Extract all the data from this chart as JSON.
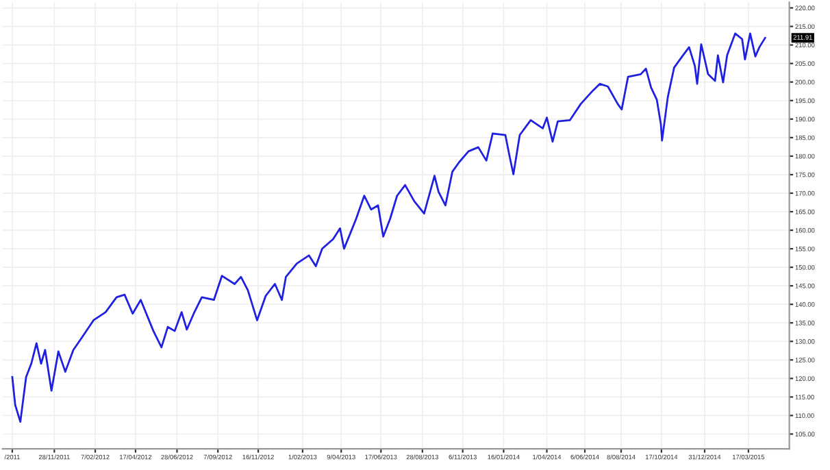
{
  "chart_data": {
    "type": "line",
    "x": [
      "2011-09-16",
      "2011-09-21",
      "2011-09-30",
      "2011-10-10",
      "2011-10-19",
      "2011-10-28",
      "2011-11-05",
      "2011-11-12",
      "2011-11-23",
      "2011-12-05",
      "2011-12-17",
      "2011-12-31",
      "2012-01-16",
      "2012-02-04",
      "2012-02-25",
      "2012-03-15",
      "2012-03-29",
      "2012-04-12",
      "2012-04-26",
      "2012-05-18",
      "2012-06-01",
      "2012-06-12",
      "2012-06-24",
      "2012-07-06",
      "2012-07-15",
      "2012-07-27",
      "2012-08-10",
      "2012-08-31",
      "2012-09-14",
      "2012-10-06",
      "2012-10-17",
      "2012-10-29",
      "2012-11-14",
      "2012-11-29",
      "2012-12-15",
      "2012-12-27",
      "2013-01-03",
      "2013-01-22",
      "2013-02-12",
      "2013-02-24",
      "2013-03-07",
      "2013-03-26",
      "2013-04-07",
      "2013-04-14",
      "2013-05-05",
      "2013-05-19",
      "2013-05-31",
      "2013-06-12",
      "2013-06-21",
      "2013-07-03",
      "2013-07-15",
      "2013-07-29",
      "2013-08-14",
      "2013-08-31",
      "2013-09-18",
      "2013-09-25",
      "2013-10-07",
      "2013-10-19",
      "2013-10-31",
      "2013-11-16",
      "2013-12-03",
      "2013-12-17",
      "2013-12-28",
      "2014-01-19",
      "2014-01-26",
      "2014-02-02",
      "2014-02-13",
      "2014-03-04",
      "2014-03-25",
      "2014-04-01",
      "2014-04-11",
      "2014-04-20",
      "2014-05-11",
      "2014-05-30",
      "2014-06-20",
      "2014-07-02",
      "2014-07-16",
      "2014-08-02",
      "2014-08-09",
      "2014-08-20",
      "2014-09-11",
      "2014-09-20",
      "2014-09-29",
      "2014-10-09",
      "2014-10-16",
      "2014-10-18",
      "2014-10-28",
      "2014-11-08",
      "2014-11-22",
      "2014-12-04",
      "2014-12-14",
      "2014-12-18",
      "2014-12-25",
      "2015-01-06",
      "2015-01-18",
      "2015-01-23",
      "2015-02-01",
      "2015-02-08",
      "2015-02-22",
      "2015-03-06",
      "2015-03-11",
      "2015-03-20",
      "2015-03-29",
      "2015-04-05",
      "2015-04-15"
    ],
    "series": [
      {
        "color": "#2020e0",
        "values": [
          120.4,
          112.9,
          108.3,
          120.4,
          124,
          129.5,
          124,
          127.7,
          116.7,
          127.3,
          121.8,
          127.7,
          131.3,
          135.7,
          137.9,
          141.9,
          142.6,
          137.5,
          141.2,
          132.8,
          128.4,
          133.9,
          132.8,
          137.9,
          133.2,
          137.5,
          141.9,
          141.2,
          147.7,
          145.5,
          147.4,
          143.8,
          135.7,
          142.3,
          145.5,
          141.2,
          147.4,
          151,
          153.2,
          150.3,
          155,
          157.6,
          160.5,
          155,
          163.1,
          169.3,
          165.6,
          166.7,
          158.3,
          163.1,
          169.3,
          172.2,
          167.8,
          164.5,
          174.7,
          170.4,
          166.7,
          175.8,
          178.4,
          181.3,
          182.4,
          178.8,
          186.1,
          185.7,
          180.2,
          175.1,
          185.7,
          189.7,
          187.5,
          190.4,
          183.9,
          189.4,
          189.7,
          194.1,
          197.7,
          199.5,
          198.8,
          194.1,
          192.6,
          201.4,
          202.1,
          203.6,
          198.5,
          195.2,
          188.6,
          184.2,
          195.9,
          203.9,
          206.9,
          209.4,
          204.3,
          199.5,
          210.2,
          202.1,
          200.3,
          207.2,
          199.9,
          207.2,
          213.1,
          211.6,
          206.1,
          213.1,
          206.9,
          209.4,
          211.91
        ]
      }
    ],
    "xlim": [
      "2011-08-30",
      "2015-05-27"
    ],
    "xticks": [
      {
        "value": "2011-09-16",
        "label": "/2011"
      },
      {
        "value": "2011-11-28",
        "label": "28/11/2011"
      },
      {
        "value": "2012-02-07",
        "label": "7/02/2012"
      },
      {
        "value": "2012-04-17",
        "label": "17/04/2012"
      },
      {
        "value": "2012-06-28",
        "label": "28/06/2012"
      },
      {
        "value": "2012-09-07",
        "label": "7/09/2012"
      },
      {
        "value": "2012-11-16",
        "label": "16/11/2012"
      },
      {
        "value": "2013-02-01",
        "label": "1/02/2013"
      },
      {
        "value": "2013-04-09",
        "label": "9/04/2013"
      },
      {
        "value": "2013-06-17",
        "label": "17/06/2013"
      },
      {
        "value": "2013-08-28",
        "label": "28/08/2013"
      },
      {
        "value": "2013-11-06",
        "label": "6/11/2013"
      },
      {
        "value": "2014-01-16",
        "label": "16/01/2014"
      },
      {
        "value": "2014-04-01",
        "label": "1/04/2014"
      },
      {
        "value": "2014-06-06",
        "label": "6/06/2014"
      },
      {
        "value": "2014-08-08",
        "label": "8/08/2014"
      },
      {
        "value": "2014-10-17",
        "label": "17/10/2014"
      },
      {
        "value": "2014-12-31",
        "label": "31/12/2014"
      },
      {
        "value": "2015-03-17",
        "label": "17/03/2015"
      }
    ],
    "ylim": [
      101,
      221.5
    ],
    "yticks": [
      {
        "value": 105,
        "label": "105.00"
      },
      {
        "value": 110,
        "label": "110.00"
      },
      {
        "value": 115,
        "label": "115.00"
      },
      {
        "value": 120,
        "label": "120.00"
      },
      {
        "value": 125,
        "label": "125.00"
      },
      {
        "value": 130,
        "label": "130.00"
      },
      {
        "value": 135,
        "label": "135.00"
      },
      {
        "value": 140,
        "label": "140.00"
      },
      {
        "value": 145,
        "label": "145.00"
      },
      {
        "value": 150,
        "label": "150.00"
      },
      {
        "value": 155,
        "label": "155.00"
      },
      {
        "value": 160,
        "label": "160.00"
      },
      {
        "value": 165,
        "label": "165.00"
      },
      {
        "value": 170,
        "label": "170.00"
      },
      {
        "value": 175,
        "label": "175.00"
      },
      {
        "value": 180,
        "label": "180.00"
      },
      {
        "value": 185,
        "label": "185.00"
      },
      {
        "value": 190,
        "label": "190.00"
      },
      {
        "value": 195,
        "label": "195.00"
      },
      {
        "value": 200,
        "label": "200.00"
      },
      {
        "value": 205,
        "label": "205.00"
      },
      {
        "value": 210,
        "label": "210.00"
      },
      {
        "value": 215,
        "label": "215.00"
      },
      {
        "value": 220,
        "label": "220.00"
      }
    ],
    "annotations": [
      "211.91"
    ],
    "grid": true,
    "legend": false
  }
}
